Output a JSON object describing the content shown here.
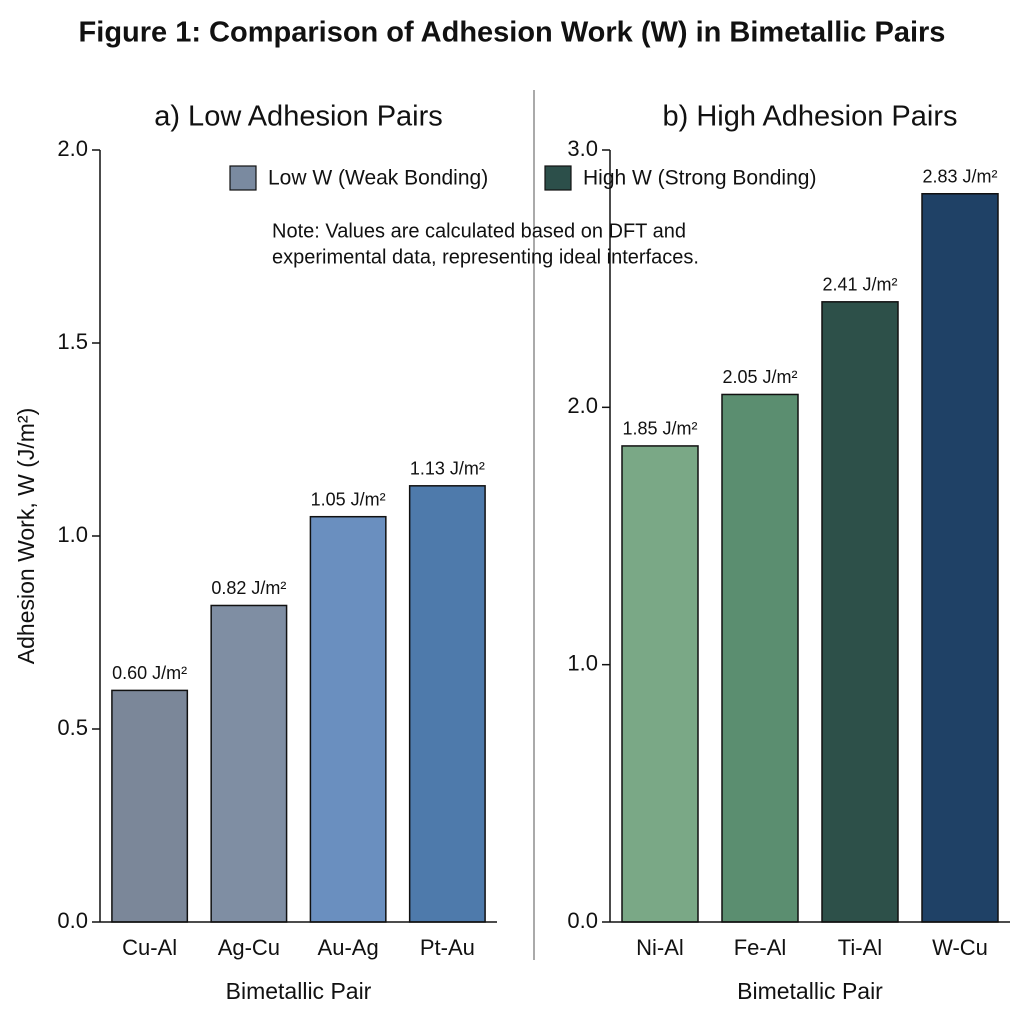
{
  "title": "Figure 1: Comparison of Adhesion Work (W) in Bimetallic Pairs",
  "note": [
    "Note: Values are calculated based on DFT and",
    "experimental data, representing ideal interfaces."
  ],
  "chart_data": [
    {
      "type": "bar",
      "title": "a) Low Adhesion Pairs",
      "x_label": "Bimetallic Pair",
      "y_label": "Adhesion Work, W (J/m²)",
      "categories": [
        "Cu-Al",
        "Ag-Cu",
        "Au-Ag",
        "Pt-Au"
      ],
      "series": [
        {
          "name": "Low W (Weak Bonding)",
          "color": "#7a8aa0",
          "values": [
            0.6,
            0.82,
            1.05,
            1.13
          ],
          "value_labels": [
            "0.60 J/m²",
            "0.82 J/m²",
            "1.05 J/m²",
            "1.13 J/m²"
          ],
          "bar_colors": [
            "#7b8799",
            "#7f8ea3",
            "#6a8fbf",
            "#4e7aab"
          ]
        }
      ],
      "ylim": [
        0,
        2
      ],
      "yticks": [
        {
          "value": 0,
          "label": "0.0"
        },
        0.5,
        {
          "value": 1,
          "label": "1.0"
        },
        1.5,
        {
          "value": 2,
          "label": "2.0"
        }
      ]
    },
    {
      "type": "bar",
      "title": "b) High Adhesion Pairs",
      "x_label": "Bimetallic Pair",
      "categories": [
        "Ni-Al",
        "Fe-Al",
        "Ti-Al",
        "W-Cu"
      ],
      "series": [
        {
          "name": "High W (Strong Bonding)",
          "color": "#2c4f4a",
          "values": [
            1.85,
            2.05,
            2.41,
            2.83
          ],
          "value_labels": [
            "1.85 J/m²",
            "2.05 J/m²",
            "2.41 J/m²",
            "2.83 J/m²"
          ],
          "bar_colors": [
            "#7aa886",
            "#5b8e70",
            "#2d5049",
            "#1f4166"
          ]
        }
      ],
      "ylim": [
        0,
        3
      ],
      "yticks": [
        {
          "value": 0,
          "label": "0.0"
        },
        {
          "value": 1,
          "label": "1.0"
        },
        {
          "value": 2,
          "label": "2.0"
        },
        {
          "value": 3,
          "label": "3.0"
        }
      ]
    }
  ]
}
